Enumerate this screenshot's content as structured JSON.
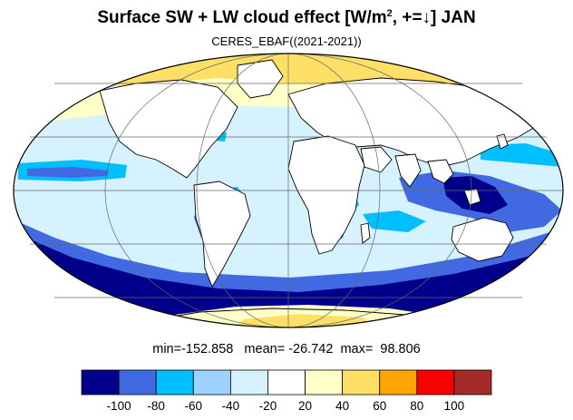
{
  "title": {
    "prefix": "Surface SW + LW cloud effect [W/m",
    "superscript": "2",
    "suffix": ", +=↓]  JAN"
  },
  "subtitle": "CERES_EBAF((2021-2021))",
  "stats": {
    "min_label": "min=",
    "min_value": "-152.858",
    "mean_label": "mean=",
    "mean_value": "-26.742",
    "max_label": "max=",
    "max_value": "98.806"
  },
  "colorbar": {
    "colors": [
      "#00008b",
      "#4169e1",
      "#00bfff",
      "#9fd3ff",
      "#d6f2ff",
      "#ffffff",
      "#ffffc8",
      "#ffe066",
      "#ffa500",
      "#ff0000",
      "#a52a2a"
    ],
    "tick_labels": [
      "-100",
      "-80",
      "-60",
      "-40",
      "-20",
      "20",
      "40",
      "60",
      "80",
      "100"
    ]
  },
  "map": {
    "projection": "Mollweide",
    "ocean_base_color": "#d6f2ff",
    "land_color": "#ffffff",
    "coastline_color": "#000000",
    "gridline_color": "#666666",
    "regions": [
      {
        "name": "arctic-positive-band",
        "color": "#ffe066"
      },
      {
        "name": "arctic-light-band",
        "color": "#ffffc8"
      },
      {
        "name": "southern-ocean-strong-band",
        "color": "#00008b"
      },
      {
        "name": "southern-ocean-band",
        "color": "#4169e1"
      },
      {
        "name": "antarctica-positive",
        "color": "#ffe066"
      },
      {
        "name": "antarctica-light",
        "color": "#ffffc8"
      },
      {
        "name": "maritime-continent-strong",
        "color": "#00008b"
      },
      {
        "name": "maritime-continent",
        "color": "#4169e1"
      },
      {
        "name": "north-pacific-band",
        "color": "#00bfff"
      },
      {
        "name": "north-atlantic-band",
        "color": "#00bfff"
      },
      {
        "name": "south-america-convection",
        "color": "#4169e1"
      },
      {
        "name": "southern-africa-convection",
        "color": "#4169e1"
      }
    ]
  }
}
